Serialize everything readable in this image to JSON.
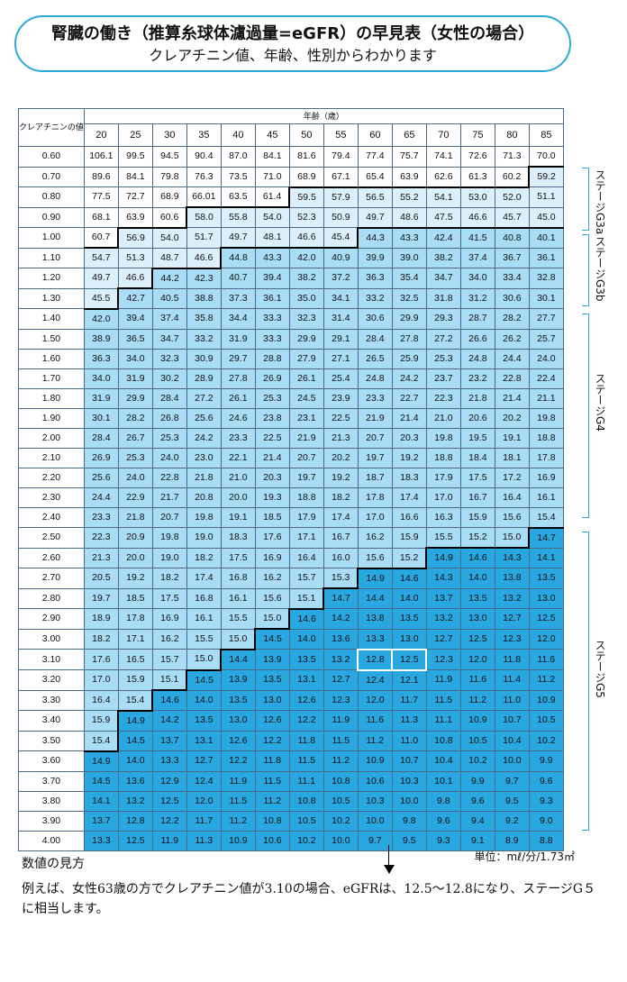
{
  "title": {
    "line1": "腎臓の働き（推算糸球体濾過量=eGFR）の早見表（女性の場合）",
    "line2": "クレアチニン値、年齢、性別からわかります"
  },
  "table_header": {
    "creatinine": "クレアチニンの値",
    "age": "年齢（歳）"
  },
  "stages": [
    {
      "label": "ステージG3a"
    },
    {
      "label": "ステージG3b"
    },
    {
      "label": "ステージG4"
    },
    {
      "label": "ステージG5"
    }
  ],
  "legend_title": "数値の見方",
  "unit": "単位：mℓ/分/1.73㎡",
  "explanation": "例えば、女性63歳の方でクレアチニン値が3.10の場合、eGFRは、12.5〜12.8になり、ステージG５に相当します。",
  "colors": {
    "white": "#ffffff",
    "g3a": "#dcf0fb",
    "g3b_g4": "#a9dcf5",
    "g5": "#29a7e1",
    "frame": "#2aa9d9"
  },
  "chart_data": {
    "type": "table",
    "ages": [
      "20",
      "25",
      "30",
      "35",
      "40",
      "45",
      "50",
      "55",
      "60",
      "65",
      "70",
      "75",
      "80",
      "85"
    ],
    "rows": [
      {
        "cr": "0.60",
        "values": [
          "106.1",
          "99.5",
          "94.5",
          "90.4",
          "87.0",
          "84.1",
          "81.6",
          "79.4",
          "77.4",
          "75.7",
          "74.1",
          "72.6",
          "71.3",
          "70.0"
        ]
      },
      {
        "cr": "0.70",
        "values": [
          "89.6",
          "84.1",
          "79.8",
          "76.3",
          "73.5",
          "71.0",
          "68.9",
          "67.1",
          "65.4",
          "63.9",
          "62.6",
          "61.3",
          "60.2",
          "59.2"
        ]
      },
      {
        "cr": "0.80",
        "values": [
          "77.5",
          "72.7",
          "68.9",
          "66.01",
          "63.5",
          "61.4",
          "59.5",
          "57.9",
          "56.5",
          "55.2",
          "54.1",
          "53.0",
          "52.0",
          "51.1"
        ]
      },
      {
        "cr": "0.90",
        "values": [
          "68.1",
          "63.9",
          "60.6",
          "58.0",
          "55.8",
          "54.0",
          "52.3",
          "50.9",
          "49.7",
          "48.6",
          "47.5",
          "46.6",
          "45.7",
          "45.0"
        ]
      },
      {
        "cr": "1.00",
        "values": [
          "60.7",
          "56.9",
          "54.0",
          "51.7",
          "49.7",
          "48.1",
          "46.6",
          "45.4",
          "44.3",
          "43.3",
          "42.4",
          "41.5",
          "40.8",
          "40.1"
        ]
      },
      {
        "cr": "1.10",
        "values": [
          "54.7",
          "51.3",
          "48.7",
          "46.6",
          "44.8",
          "43.3",
          "42.0",
          "40.9",
          "39.9",
          "39.0",
          "38.2",
          "37.4",
          "36.7",
          "36.1"
        ]
      },
      {
        "cr": "1.20",
        "values": [
          "49.7",
          "46.6",
          "44.2",
          "42.3",
          "40.7",
          "39.4",
          "38.2",
          "37.2",
          "36.3",
          "35.4",
          "34.7",
          "34.0",
          "33.4",
          "32.8"
        ]
      },
      {
        "cr": "1.30",
        "values": [
          "45.5",
          "42.7",
          "40.5",
          "38.8",
          "37.3",
          "36.1",
          "35.0",
          "34.1",
          "33.2",
          "32.5",
          "31.8",
          "31.2",
          "30.6",
          "30.1"
        ]
      },
      {
        "cr": "1.40",
        "values": [
          "42.0",
          "39.4",
          "37.4",
          "35.8",
          "34.4",
          "33.3",
          "32.3",
          "31.4",
          "30.6",
          "29.9",
          "29.3",
          "28.7",
          "28.2",
          "27.7"
        ]
      },
      {
        "cr": "1.50",
        "values": [
          "38.9",
          "36.5",
          "34.7",
          "33.2",
          "31.9",
          "33.3",
          "29.9",
          "29.1",
          "28.4",
          "27.8",
          "27.2",
          "26.6",
          "26.2",
          "25.7"
        ]
      },
      {
        "cr": "1.60",
        "values": [
          "36.3",
          "34.0",
          "32.3",
          "30.9",
          "29.7",
          "28.8",
          "27.9",
          "27.1",
          "26.5",
          "25.9",
          "25.3",
          "24.8",
          "24.4",
          "24.0"
        ]
      },
      {
        "cr": "1.70",
        "values": [
          "34.0",
          "31.9",
          "30.2",
          "28.9",
          "27.8",
          "26.9",
          "26.1",
          "25.4",
          "24.8",
          "24.2",
          "23.7",
          "23.2",
          "22.8",
          "22.4"
        ]
      },
      {
        "cr": "1.80",
        "values": [
          "31.9",
          "29.9",
          "28.4",
          "27.2",
          "26.1",
          "25.3",
          "24.5",
          "23.9",
          "23.3",
          "22.7",
          "22.3",
          "21.8",
          "21.4",
          "21.1"
        ]
      },
      {
        "cr": "1.90",
        "values": [
          "30.1",
          "28.2",
          "26.8",
          "25.6",
          "24.6",
          "23.8",
          "23.1",
          "22.5",
          "21.9",
          "21.4",
          "21.0",
          "20.6",
          "20.2",
          "19.8"
        ]
      },
      {
        "cr": "2.00",
        "values": [
          "28.4",
          "26.7",
          "25.3",
          "24.2",
          "23.3",
          "22.5",
          "21.9",
          "21.3",
          "20.7",
          "20.3",
          "19.8",
          "19.5",
          "19.1",
          "18.8"
        ]
      },
      {
        "cr": "2.10",
        "values": [
          "26.9",
          "25.3",
          "24.0",
          "23.0",
          "22.1",
          "21.4",
          "20.7",
          "20.2",
          "19.7",
          "19.2",
          "18.8",
          "18.4",
          "18.1",
          "17.8"
        ]
      },
      {
        "cr": "2.20",
        "values": [
          "25.6",
          "24.0",
          "22.8",
          "21.8",
          "21.0",
          "20.3",
          "19.7",
          "19.2",
          "18.7",
          "18.3",
          "17.9",
          "17.5",
          "17.2",
          "16.9"
        ]
      },
      {
        "cr": "2.30",
        "values": [
          "24.4",
          "22.9",
          "21.7",
          "20.8",
          "20.0",
          "19.3",
          "18.8",
          "18.2",
          "17.8",
          "17.4",
          "17.0",
          "16.7",
          "16.4",
          "16.1"
        ]
      },
      {
        "cr": "2.40",
        "values": [
          "23.3",
          "21.8",
          "20.7",
          "19.8",
          "19.1",
          "18.5",
          "17.9",
          "17.4",
          "17.0",
          "16.6",
          "16.3",
          "15.9",
          "15.6",
          "15.4"
        ]
      },
      {
        "cr": "2.50",
        "values": [
          "22.3",
          "20.9",
          "19.8",
          "19.0",
          "18.3",
          "17.6",
          "17.1",
          "16.7",
          "16.2",
          "15.9",
          "15.5",
          "15.2",
          "15.0",
          "14.7"
        ]
      },
      {
        "cr": "2.60",
        "values": [
          "21.3",
          "20.0",
          "19.0",
          "18.2",
          "17.5",
          "16.9",
          "16.4",
          "16.0",
          "15.6",
          "15.2",
          "14.9",
          "14.6",
          "14.3",
          "14.1"
        ]
      },
      {
        "cr": "2.70",
        "values": [
          "20.5",
          "19.2",
          "18.2",
          "17.4",
          "16.8",
          "16.2",
          "15.7",
          "15.3",
          "14.9",
          "14.6",
          "14.3",
          "14.0",
          "13.8",
          "13.5"
        ]
      },
      {
        "cr": "2.80",
        "values": [
          "19.7",
          "18.5",
          "17.5",
          "16.8",
          "16.1",
          "15.6",
          "15.1",
          "14.7",
          "14.4",
          "14.0",
          "13.7",
          "13.5",
          "13.2",
          "13.0"
        ]
      },
      {
        "cr": "2.90",
        "values": [
          "18.9",
          "17.8",
          "16.9",
          "16.1",
          "15.5",
          "15.0",
          "14.6",
          "14.2",
          "13.8",
          "13.5",
          "13.2",
          "13.0",
          "12.7",
          "12.5"
        ]
      },
      {
        "cr": "3.00",
        "values": [
          "18.2",
          "17.1",
          "16.2",
          "15.5",
          "15.0",
          "14.5",
          "14.0",
          "13.6",
          "13.3",
          "13.0",
          "12.7",
          "12.5",
          "12.3",
          "12.0"
        ]
      },
      {
        "cr": "3.10",
        "values": [
          "17.6",
          "16.5",
          "15.7",
          "15.0",
          "14.4",
          "13.9",
          "13.5",
          "13.2",
          "12.8",
          "12.5",
          "12.3",
          "12.0",
          "11.8",
          "11.6"
        ]
      },
      {
        "cr": "3.20",
        "values": [
          "17.0",
          "15.9",
          "15.1",
          "14.5",
          "13.9",
          "13.5",
          "13.1",
          "12.7",
          "12.4",
          "12.1",
          "11.9",
          "11.6",
          "11.4",
          "11.2"
        ]
      },
      {
        "cr": "3.30",
        "values": [
          "16.4",
          "15.4",
          "14.6",
          "14.0",
          "13.5",
          "13.0",
          "12.6",
          "12.3",
          "12.0",
          "11.7",
          "11.5",
          "11.2",
          "11.0",
          "10.9"
        ]
      },
      {
        "cr": "3.40",
        "values": [
          "15.9",
          "14.9",
          "14.2",
          "13.5",
          "13.0",
          "12.6",
          "12.2",
          "11.9",
          "11.6",
          "11.3",
          "11.1",
          "10.9",
          "10.7",
          "10.5"
        ]
      },
      {
        "cr": "3.50",
        "values": [
          "15.4",
          "14.5",
          "13.7",
          "13.1",
          "12.6",
          "12.2",
          "11.8",
          "11.5",
          "11.2",
          "11.0",
          "10.8",
          "10.5",
          "10.4",
          "10.2"
        ]
      },
      {
        "cr": "3.60",
        "values": [
          "14.9",
          "14.0",
          "13.3",
          "12.7",
          "12.2",
          "11.8",
          "11.5",
          "11.2",
          "10.9",
          "10.7",
          "10.4",
          "10.2",
          "10.0",
          "9.9"
        ]
      },
      {
        "cr": "3.70",
        "values": [
          "14.5",
          "13.6",
          "12.9",
          "12.4",
          "11.9",
          "11.5",
          "11.1",
          "10.8",
          "10.6",
          "10.3",
          "10.1",
          "9.9",
          "9.7",
          "9.6"
        ]
      },
      {
        "cr": "3.80",
        "values": [
          "14.1",
          "13.2",
          "12.5",
          "12.0",
          "11.5",
          "11.2",
          "10.8",
          "10.5",
          "10.3",
          "10.0",
          "9.8",
          "9.6",
          "9.5",
          "9.3"
        ]
      },
      {
        "cr": "3.90",
        "values": [
          "13.7",
          "12.8",
          "12.2",
          "11.7",
          "11.2",
          "10.8",
          "10.5",
          "10.2",
          "10.0",
          "9.8",
          "9.6",
          "9.4",
          "9.2",
          "9.0"
        ]
      },
      {
        "cr": "4.00",
        "values": [
          "13.3",
          "12.5",
          "11.9",
          "11.3",
          "10.9",
          "10.6",
          "10.2",
          "10.0",
          "9.7",
          "9.5",
          "9.3",
          "9.1",
          "8.9",
          "8.8"
        ]
      }
    ],
    "stage_thresholds": {
      "g3a_min": 45,
      "g3b_min": 30,
      "g4_min": 15
    }
  }
}
